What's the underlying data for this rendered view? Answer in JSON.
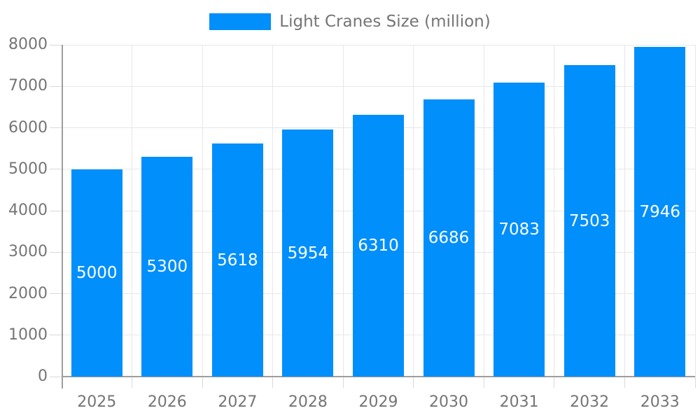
{
  "legend": {
    "label": "Light Cranes Size (million)"
  },
  "chart_data": {
    "type": "bar",
    "title": "",
    "xlabel": "",
    "ylabel": "",
    "categories": [
      "2025",
      "2026",
      "2027",
      "2028",
      "2029",
      "2030",
      "2031",
      "2032",
      "2033"
    ],
    "series": [
      {
        "name": "Light Cranes Size (million)",
        "values": [
          5000,
          5300,
          5618,
          5954,
          6310,
          6686,
          7083,
          7503,
          7946
        ]
      }
    ],
    "value_labels_shown": true,
    "ylim": [
      0,
      8000
    ],
    "yticks": [
      0,
      1000,
      2000,
      3000,
      4000,
      5000,
      6000,
      7000,
      8000
    ],
    "grid": "both",
    "legend_position": "top-center",
    "colors": {
      "bar": "#008FFB",
      "value_label": "#FFFFFF",
      "axis_text": "#757575",
      "gridline": "#E7E7E7",
      "axis_line": "#9E9E9E",
      "tick": "#D9D9D9",
      "background": "#FFFFFF"
    }
  }
}
